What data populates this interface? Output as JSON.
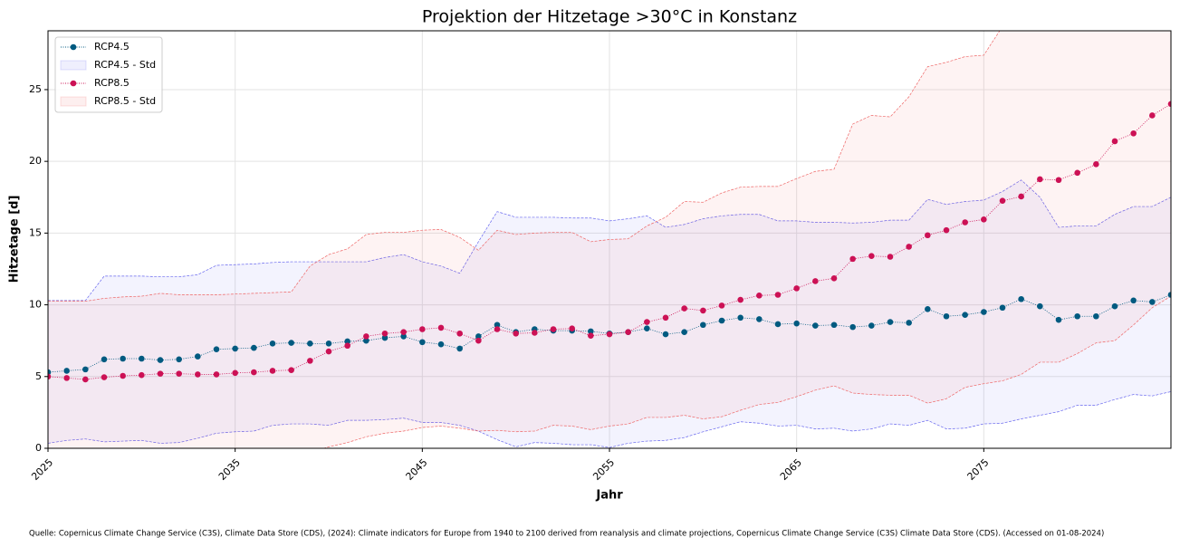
{
  "chart_data": {
    "type": "line",
    "title": "Projektion der Hitzetage >30°C in Konstanz",
    "xlabel": "Jahr",
    "ylabel": "Hitzetage [d]",
    "source": "Quelle: Copernicus Climate Change Service (C3S), Climate Data Store (CDS), (2024): Climate indicators for Europe from 1940 to 2100 derived from reanalysis and climate projections, Copernicus Climate Change Service (C3S) Climate Data Store (CDS). (Accessed on 01-08-2024)",
    "x": [
      2025,
      2026,
      2027,
      2028,
      2029,
      2030,
      2031,
      2032,
      2033,
      2034,
      2035,
      2036,
      2037,
      2038,
      2039,
      2040,
      2041,
      2042,
      2043,
      2044,
      2045,
      2046,
      2047,
      2048,
      2049,
      2050,
      2051,
      2052,
      2053,
      2054,
      2055,
      2056,
      2057,
      2058,
      2059,
      2060,
      2061,
      2062,
      2063,
      2064,
      2065,
      2066,
      2067,
      2068,
      2069,
      2070,
      2071,
      2072,
      2073,
      2074,
      2075,
      2076,
      2077,
      2078,
      2079,
      2080,
      2081,
      2082,
      2083,
      2084,
      2085
    ],
    "xlim": [
      2025,
      2085
    ],
    "xticks": [
      2025,
      2035,
      2045,
      2055,
      2065,
      2075
    ],
    "ylim": [
      0,
      29.1
    ],
    "yticks": [
      0,
      5,
      10,
      15,
      20,
      25
    ],
    "grid": true,
    "legend": "upper left",
    "series": [
      {
        "name": "RCP4.5",
        "color": "#005a80",
        "values": [
          5.3,
          5.4,
          5.5,
          6.2,
          6.25,
          6.25,
          6.15,
          6.2,
          6.4,
          6.9,
          6.95,
          7.0,
          7.3,
          7.35,
          7.3,
          7.3,
          7.45,
          7.5,
          7.7,
          7.8,
          7.4,
          7.25,
          6.95,
          7.8,
          8.6,
          8.1,
          8.3,
          8.2,
          8.2,
          8.15,
          8.0,
          8.1,
          8.35,
          7.95,
          8.1,
          8.6,
          8.9,
          9.1,
          9.0,
          8.65,
          8.7,
          8.55,
          8.6,
          8.45,
          8.55,
          8.8,
          8.75,
          9.7,
          9.2,
          9.3,
          9.5,
          9.8,
          10.4,
          9.9,
          8.95,
          9.2,
          9.2,
          9.9,
          10.3,
          10.2,
          10.7
        ]
      },
      {
        "name": "RCP4.5 - Std",
        "color": "#6666ee",
        "upper": [
          10.3,
          10.3,
          10.3,
          12.0,
          12.0,
          12.0,
          11.95,
          11.95,
          12.1,
          12.75,
          12.8,
          12.85,
          12.95,
          13.0,
          13.0,
          13.0,
          13.0,
          13.0,
          13.3,
          13.5,
          13.0,
          12.7,
          12.2,
          14.4,
          16.5,
          16.1,
          16.1,
          16.1,
          16.05,
          16.05,
          15.85,
          16.0,
          16.2,
          15.4,
          15.6,
          16.0,
          16.2,
          16.3,
          16.3,
          15.85,
          15.85,
          15.75,
          15.75,
          15.7,
          15.75,
          15.9,
          15.9,
          17.35,
          17.0,
          17.2,
          17.3,
          17.9,
          18.7,
          17.5,
          15.4,
          15.5,
          15.5,
          16.3,
          16.85,
          16.85,
          17.5
        ],
        "lower": [
          0.35,
          0.55,
          0.65,
          0.45,
          0.5,
          0.55,
          0.35,
          0.4,
          0.7,
          1.05,
          1.15,
          1.2,
          1.6,
          1.7,
          1.7,
          1.6,
          1.95,
          1.95,
          2.0,
          2.1,
          1.8,
          1.8,
          1.6,
          1.2,
          0.6,
          0.1,
          0.4,
          0.35,
          0.25,
          0.25,
          0.05,
          0.35,
          0.5,
          0.55,
          0.75,
          1.15,
          1.5,
          1.85,
          1.75,
          1.55,
          1.6,
          1.35,
          1.4,
          1.2,
          1.35,
          1.7,
          1.6,
          1.95,
          1.35,
          1.4,
          1.7,
          1.75,
          2.05,
          2.3,
          2.55,
          3.0,
          3.0,
          3.4,
          3.75,
          3.65,
          3.95
        ]
      },
      {
        "name": "RCP8.5",
        "color": "#cc1155",
        "values": [
          5.0,
          4.9,
          4.8,
          4.95,
          5.05,
          5.1,
          5.2,
          5.2,
          5.15,
          5.15,
          5.25,
          5.3,
          5.4,
          5.45,
          6.1,
          6.75,
          7.15,
          7.8,
          8.0,
          8.1,
          8.3,
          8.4,
          8.0,
          7.5,
          8.3,
          8.0,
          8.05,
          8.3,
          8.35,
          7.85,
          7.95,
          8.1,
          8.8,
          9.1,
          9.75,
          9.6,
          9.95,
          10.35,
          10.65,
          10.7,
          11.15,
          11.65,
          11.85,
          13.2,
          13.4,
          13.35,
          14.05,
          14.85,
          15.2,
          15.75,
          15.95,
          17.25,
          17.55,
          18.75,
          18.7,
          19.2,
          19.8,
          21.4,
          21.95,
          23.2,
          24.0
        ]
      },
      {
        "name": "RCP8.5 - Std",
        "color": "#ee6666",
        "upper": [
          10.25,
          10.25,
          10.25,
          10.45,
          10.55,
          10.6,
          10.8,
          10.7,
          10.7,
          10.7,
          10.75,
          10.8,
          10.85,
          10.9,
          12.7,
          13.5,
          13.9,
          14.9,
          15.05,
          15.05,
          15.2,
          15.25,
          14.7,
          13.8,
          15.2,
          14.9,
          15.0,
          15.05,
          15.05,
          14.4,
          14.55,
          14.6,
          15.5,
          16.1,
          17.2,
          17.15,
          17.8,
          18.2,
          18.25,
          18.25,
          18.8,
          19.3,
          19.45,
          22.6,
          23.2,
          23.1,
          24.5,
          26.6,
          26.9,
          27.3,
          27.4,
          29.4,
          31,
          32,
          32,
          32,
          32.5,
          33,
          33,
          34,
          34
        ],
        "lower": [
          -0.3,
          -0.4,
          -0.4,
          -0.3,
          -0.3,
          -0.4,
          -0.3,
          -0.3,
          -0.4,
          -0.5,
          -0.4,
          -0.3,
          -0.1,
          0.0,
          -0.3,
          0.1,
          0.4,
          0.8,
          1.05,
          1.2,
          1.45,
          1.55,
          1.4,
          1.2,
          1.25,
          1.15,
          1.2,
          1.6,
          1.55,
          1.3,
          1.55,
          1.7,
          2.15,
          2.15,
          2.3,
          2.05,
          2.2,
          2.65,
          3.05,
          3.2,
          3.6,
          4.05,
          4.35,
          3.85,
          3.75,
          3.7,
          3.7,
          3.15,
          3.45,
          4.25,
          4.5,
          4.7,
          5.15,
          6.0,
          6.0,
          6.6,
          7.35,
          7.5,
          8.6,
          9.8,
          10.6
        ]
      }
    ]
  }
}
